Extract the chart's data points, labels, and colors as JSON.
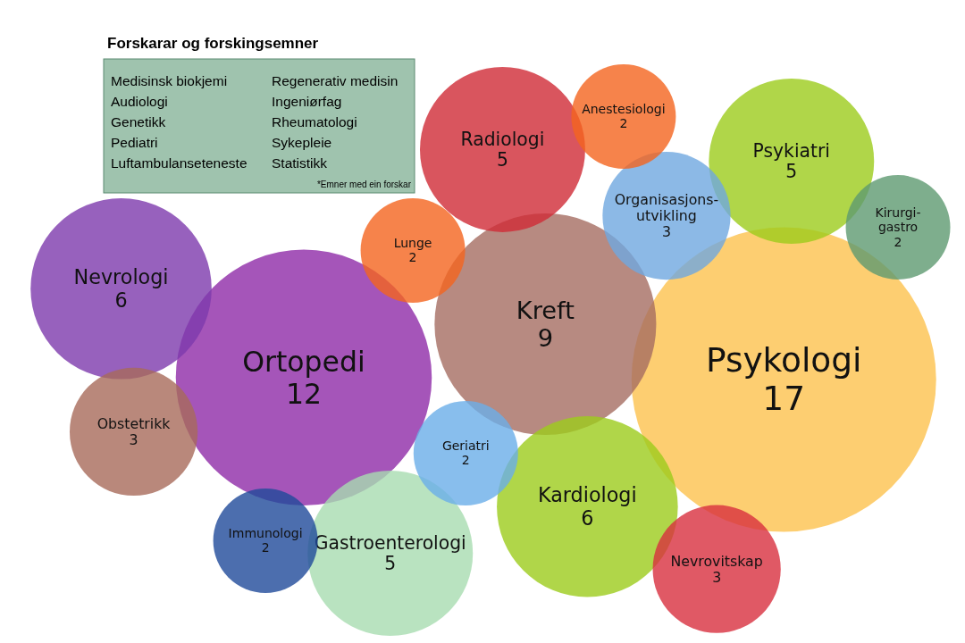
{
  "chart_data": {
    "type": "other",
    "data_labels": true,
    "title": "Forskarar og forskingsemner",
    "annotations": [
      "Medisinsk biokjemi",
      "Audiologi",
      "Genetikk",
      "Pediatri",
      "Luftambulanseteneste",
      "Regenerativ medisin",
      "Ingeniørfag",
      "Rheumatologi",
      "Sykepleie",
      "Statistikk",
      "*Emner med ein forskar"
    ],
    "categories": [
      "Psykologi",
      "Ortopedi",
      "Kreft",
      "Kardiologi",
      "Nevrologi",
      "Psykiatri",
      "Gastroenterologi",
      "Radiologi",
      "Nevrovitskap",
      "Obstetrikk",
      "Organisasjons-\nutvikling",
      "Geriatri",
      "Lunge",
      "Kirurgi-\ngastro",
      "Immunologi",
      "Anestesiologi"
    ],
    "values": [
      17,
      12,
      9,
      6,
      6,
      5,
      5,
      5,
      3,
      3,
      3,
      2,
      2,
      2,
      2,
      2
    ],
    "colors": [
      "#fcc24e",
      "#8e2aa8",
      "#a56d62",
      "#9ccc1c",
      "#7d3aac",
      "#9ccc1c",
      "#a8dcb0",
      "#d02a36",
      "#d8303e",
      "#a86a5a",
      "#6fa8e0",
      "#6aaee8",
      "#f4641e",
      "#5e9a70",
      "#1f4a9a",
      "#f4641e"
    ]
  }
}
